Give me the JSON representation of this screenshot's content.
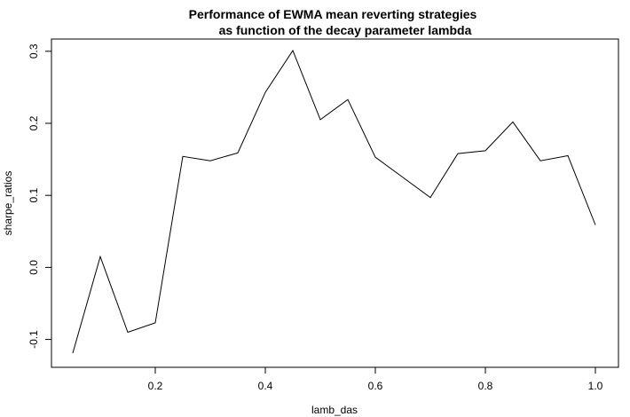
{
  "chart_data": {
    "type": "line",
    "title_lines": [
      "Performance of EWMA mean reverting strategies",
      "as function of the decay parameter lambda"
    ],
    "xlabel": "lamb_das",
    "ylabel": "sharpe_ratios",
    "x": [
      0.05,
      0.1,
      0.15,
      0.2,
      0.25,
      0.3,
      0.35,
      0.4,
      0.45,
      0.5,
      0.55,
      0.6,
      0.65,
      0.7,
      0.75,
      0.8,
      0.85,
      0.9,
      0.95,
      1.0
    ],
    "y": [
      -0.119,
      0.015,
      -0.09,
      -0.077,
      0.154,
      0.148,
      0.159,
      0.243,
      0.301,
      0.205,
      0.233,
      0.153,
      0.125,
      0.097,
      0.158,
      0.162,
      0.202,
      0.148,
      0.155,
      0.059
    ],
    "xlim": [
      0.05,
      1.0
    ],
    "ylim": [
      -0.119,
      0.301
    ],
    "xticks": [
      "0.2",
      "0.4",
      "0.6",
      "0.8",
      "1.0"
    ],
    "yticks": [
      "-0.1",
      "0.0",
      "0.1",
      "0.2",
      "0.3"
    ],
    "grid": false,
    "line_color": "#000000"
  }
}
